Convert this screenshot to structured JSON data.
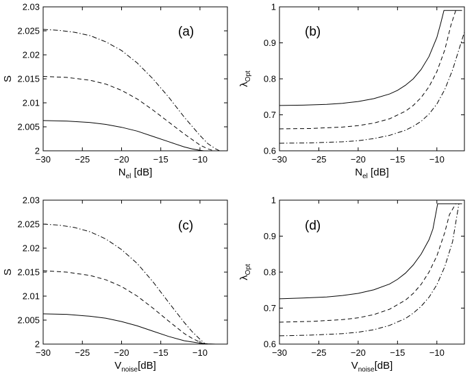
{
  "chart_data": [
    {
      "id": "a",
      "type": "line",
      "panel_label": "(a)",
      "xlabel_main": "N",
      "xlabel_sub": "el",
      "xlabel_unit": " [dB]",
      "ylabel_main": "S",
      "ylabel_sub": "",
      "xlim": [
        -30,
        -6.5
      ],
      "ylim": [
        2,
        2.03
      ],
      "xticks": [
        -30,
        -25,
        -20,
        -15,
        -10
      ],
      "xtick_labels": [
        "−30",
        "−25",
        "−20",
        "−15",
        "−10"
      ],
      "yticks": [
        2,
        2.005,
        2.01,
        2.015,
        2.02,
        2.025,
        2.03
      ],
      "ytick_labels": [
        "2",
        "2.005",
        "2.01",
        "2.015",
        "2.02",
        "2.025",
        "2.03"
      ],
      "series": [
        {
          "name": "solid",
          "style": "solid",
          "x": [
            -30,
            -27,
            -24,
            -22,
            -20,
            -18,
            -16,
            -14,
            -12,
            -11,
            -10,
            -9.5
          ],
          "y": [
            2.0063,
            2.0062,
            2.0059,
            2.0055,
            2.0049,
            2.0041,
            2.003,
            2.0019,
            2.0008,
            2.0004,
            2.0001,
            2.0
          ]
        },
        {
          "name": "dashed",
          "style": "dashed",
          "x": [
            -30,
            -27,
            -24,
            -22,
            -20,
            -18,
            -16,
            -14,
            -12,
            -10,
            -9,
            -8.2
          ],
          "y": [
            2.0155,
            2.0153,
            2.0147,
            2.0139,
            2.0126,
            2.0108,
            2.0085,
            2.006,
            2.0035,
            2.0012,
            2.0004,
            2.0
          ]
        },
        {
          "name": "dash-dot",
          "style": "dashdot",
          "x": [
            -30,
            -28,
            -26,
            -24,
            -22,
            -20,
            -18,
            -16,
            -14,
            -12,
            -10,
            -9,
            -8,
            -7.5
          ],
          "y": [
            2.0253,
            2.0251,
            2.0247,
            2.024,
            2.0227,
            2.0209,
            2.0183,
            2.015,
            2.0112,
            2.007,
            2.0032,
            2.0015,
            2.0004,
            2.0
          ]
        }
      ]
    },
    {
      "id": "b",
      "type": "line",
      "panel_label": "(b)",
      "xlabel_main": "N",
      "xlabel_sub": "el",
      "xlabel_unit": " [dB]",
      "ylabel_main": "λ",
      "ylabel_sub": "Opt",
      "xlim": [
        -30,
        -6.5
      ],
      "ylim": [
        0.6,
        1
      ],
      "xticks": [
        -30,
        -25,
        -20,
        -15,
        -10
      ],
      "xtick_labels": [
        "−30",
        "−25",
        "−20",
        "−15",
        "−10"
      ],
      "yticks": [
        0.6,
        0.7,
        0.8,
        0.9,
        1
      ],
      "ytick_labels": [
        "0.6",
        "0.7",
        "0.8",
        "0.9",
        "1"
      ],
      "series": [
        {
          "name": "solid",
          "style": "solid",
          "x": [
            -30,
            -27,
            -24,
            -22,
            -20,
            -18,
            -16,
            -15,
            -14,
            -13,
            -12,
            -11,
            -10,
            -9.5,
            -9.1,
            -6.8
          ],
          "y": [
            0.726,
            0.727,
            0.729,
            0.732,
            0.737,
            0.745,
            0.758,
            0.768,
            0.782,
            0.8,
            0.826,
            0.862,
            0.915,
            0.955,
            0.99,
            0.99
          ]
        },
        {
          "name": "dashed",
          "style": "dashed",
          "x": [
            -30,
            -26,
            -22,
            -20,
            -18,
            -16,
            -14,
            -13,
            -12,
            -11,
            -10,
            -9,
            -8.2,
            -7.6
          ],
          "y": [
            0.661,
            0.662,
            0.666,
            0.67,
            0.677,
            0.689,
            0.71,
            0.726,
            0.748,
            0.778,
            0.82,
            0.88,
            0.95,
            0.99
          ]
        },
        {
          "name": "dash-dot",
          "style": "dashdot",
          "x": [
            -30,
            -26,
            -22,
            -20,
            -18,
            -16,
            -14,
            -13,
            -12,
            -11,
            -10,
            -9,
            -8,
            -7,
            -6.5
          ],
          "y": [
            0.621,
            0.622,
            0.625,
            0.628,
            0.634,
            0.643,
            0.657,
            0.668,
            0.682,
            0.702,
            0.73,
            0.77,
            0.825,
            0.895,
            0.93
          ]
        }
      ]
    },
    {
      "id": "c",
      "type": "line",
      "panel_label": "(c)",
      "xlabel_main": "V",
      "xlabel_sub": "noise",
      "xlabel_unit": "[dB]",
      "ylabel_main": "S",
      "ylabel_sub": "",
      "xlim": [
        -30,
        -6.5
      ],
      "ylim": [
        2,
        2.03
      ],
      "xticks": [
        -30,
        -25,
        -20,
        -15,
        -10
      ],
      "xtick_labels": [
        "−30",
        "−25",
        "−20",
        "−15",
        "−10"
      ],
      "yticks": [
        2,
        2.005,
        2.01,
        2.015,
        2.02,
        2.025,
        2.03
      ],
      "ytick_labels": [
        "2",
        "2.005",
        "2.01",
        "2.015",
        "2.02",
        "2.025",
        "2.03"
      ],
      "series": [
        {
          "name": "solid",
          "style": "solid",
          "x": [
            -30,
            -27,
            -24,
            -22,
            -20,
            -18,
            -16,
            -14,
            -12,
            -10,
            -9,
            -8
          ],
          "y": [
            2.0063,
            2.0062,
            2.0058,
            2.0054,
            2.0047,
            2.0038,
            2.0027,
            2.0016,
            2.0007,
            2.0002,
            2.00005,
            2.0
          ]
        },
        {
          "name": "dashed",
          "style": "dashed",
          "x": [
            -30,
            -27,
            -24,
            -22,
            -20,
            -18,
            -16,
            -14,
            -12,
            -11,
            -10,
            -9.5
          ],
          "y": [
            2.0153,
            2.015,
            2.0143,
            2.0134,
            2.012,
            2.01,
            2.0075,
            2.0048,
            2.0022,
            2.0012,
            2.0004,
            2.0
          ]
        },
        {
          "name": "dash-dot",
          "style": "dashdot",
          "x": [
            -30,
            -28,
            -26,
            -24,
            -22,
            -20,
            -18,
            -16,
            -14,
            -12,
            -11,
            -10,
            -9.3
          ],
          "y": [
            2.025,
            2.0248,
            2.0243,
            2.0234,
            2.0219,
            2.0197,
            2.0168,
            2.013,
            2.0087,
            2.0045,
            2.0026,
            2.001,
            2.0
          ]
        }
      ]
    },
    {
      "id": "d",
      "type": "line",
      "panel_label": "(d)",
      "xlabel_main": "V",
      "xlabel_sub": "noise",
      "xlabel_unit": "[dB]",
      "ylabel_main": "λ",
      "ylabel_sub": "Opt",
      "xlim": [
        -30,
        -6.5
      ],
      "ylim": [
        0.6,
        1
      ],
      "xticks": [
        -30,
        -25,
        -20,
        -15,
        -10
      ],
      "xtick_labels": [
        "−30",
        "−25",
        "−20",
        "−15",
        "−10"
      ],
      "yticks": [
        0.6,
        0.7,
        0.8,
        0.9,
        1
      ],
      "ytick_labels": [
        "0.6",
        "0.7",
        "0.8",
        "0.9",
        "1"
      ],
      "series": [
        {
          "name": "solid",
          "style": "solid",
          "x": [
            -30,
            -27,
            -24,
            -22,
            -20,
            -18,
            -16,
            -15,
            -14,
            -13,
            -12,
            -11,
            -10.5,
            -9.9,
            -6.8
          ],
          "y": [
            0.726,
            0.728,
            0.731,
            0.735,
            0.741,
            0.751,
            0.767,
            0.78,
            0.797,
            0.82,
            0.85,
            0.89,
            0.92,
            0.99,
            0.99
          ]
        },
        {
          "name": "dashed",
          "style": "dashed",
          "x": [
            -30,
            -26,
            -22,
            -20,
            -18,
            -16,
            -14,
            -13,
            -12,
            -11,
            -10,
            -9,
            -8.4,
            -7.6
          ],
          "y": [
            0.661,
            0.663,
            0.668,
            0.673,
            0.682,
            0.697,
            0.722,
            0.741,
            0.766,
            0.8,
            0.845,
            0.91,
            0.96,
            0.99
          ]
        },
        {
          "name": "dash-dot",
          "style": "dashdot",
          "x": [
            -30,
            -26,
            -22,
            -20,
            -18,
            -16,
            -14,
            -13,
            -12,
            -11,
            -10,
            -9,
            -8,
            -7.2
          ],
          "y": [
            0.623,
            0.625,
            0.629,
            0.633,
            0.64,
            0.652,
            0.671,
            0.686,
            0.705,
            0.73,
            0.765,
            0.815,
            0.885,
            0.99
          ]
        }
      ]
    }
  ]
}
